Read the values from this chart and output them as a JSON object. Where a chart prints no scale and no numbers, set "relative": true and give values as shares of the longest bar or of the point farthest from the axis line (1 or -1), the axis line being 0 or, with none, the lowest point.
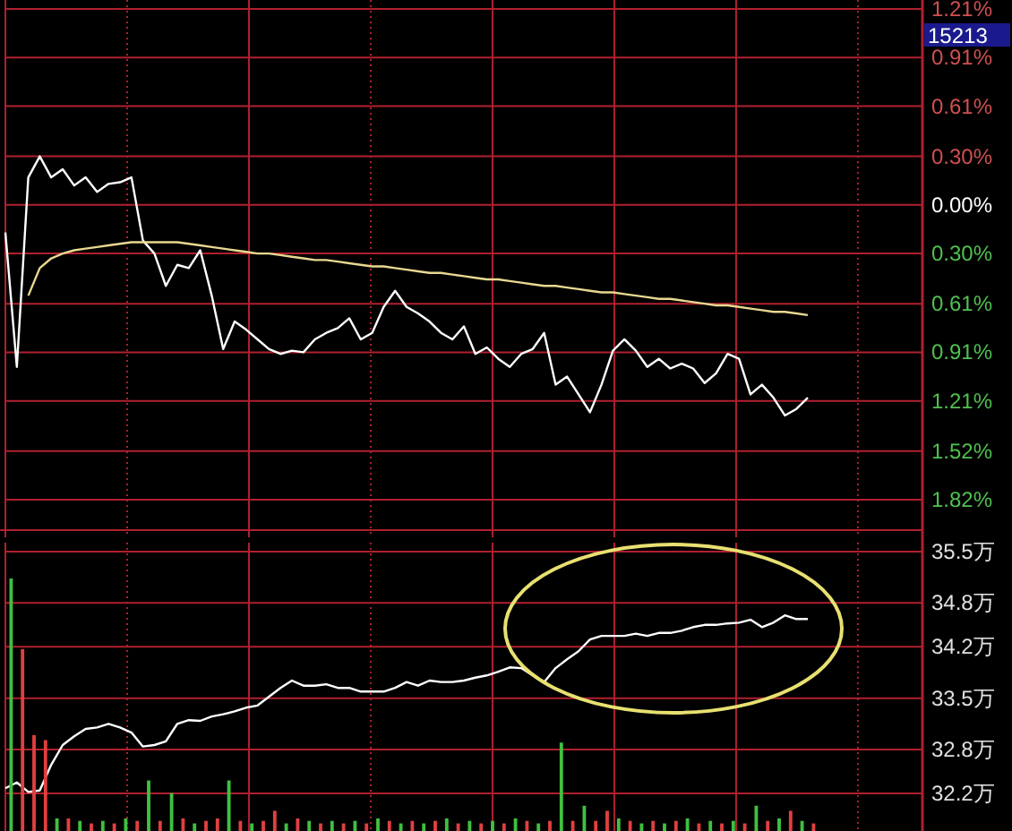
{
  "chart_data": [
    {
      "type": "line",
      "categories": [
        null,
        null,
        null,
        null,
        null,
        null,
        null,
        null,
        null,
        null,
        null,
        null,
        null,
        null,
        null,
        null,
        null,
        null,
        null,
        null,
        null,
        null,
        null,
        null,
        null,
        null,
        null,
        null,
        null,
        null,
        null,
        null,
        null,
        null,
        null,
        null,
        null,
        null,
        null,
        null,
        null,
        null,
        null,
        null,
        null,
        null,
        null,
        null,
        null,
        null,
        null,
        null,
        null,
        null,
        null,
        null,
        null,
        null,
        null,
        null,
        null,
        null,
        null,
        null,
        null,
        null,
        null,
        null,
        null,
        null,
        null
      ],
      "series": [
        {
          "color": "#ffffff",
          "values": [
            -0.17,
            -1.0,
            0.17,
            0.3,
            0.17,
            0.22,
            0.12,
            0.17,
            0.08,
            0.13,
            0.14,
            0.17,
            -0.22,
            -0.3,
            -0.5,
            -0.37,
            -0.39,
            -0.28,
            -0.56,
            -0.89,
            -0.72,
            -0.77,
            -0.83,
            -0.89,
            -0.92,
            -0.9,
            -0.91,
            -0.83,
            -0.79,
            -0.76,
            -0.7,
            -0.83,
            -0.79,
            -0.63,
            -0.53,
            -0.63,
            -0.67,
            -0.72,
            -0.79,
            -0.83,
            -0.75,
            -0.92,
            -0.88,
            -0.95,
            -1.0,
            -0.92,
            -0.89,
            -0.79,
            -1.11,
            -1.06,
            -1.17,
            -1.28,
            -1.11,
            -0.9,
            -0.83,
            -0.9,
            -1.0,
            -0.95,
            -1.01,
            -0.98,
            -1.01,
            -1.1,
            -1.04,
            -0.92,
            -0.95,
            -1.17,
            -1.11,
            -1.19,
            -1.3,
            -1.26,
            -1.19
          ]
        },
        {
          "color": "#e8d890",
          "values": [
            null,
            null,
            -0.56,
            -0.39,
            -0.33,
            -0.3,
            -0.28,
            -0.27,
            -0.26,
            -0.25,
            -0.24,
            -0.23,
            -0.23,
            -0.23,
            -0.23,
            -0.23,
            -0.24,
            -0.25,
            -0.26,
            -0.27,
            -0.28,
            -0.29,
            -0.3,
            -0.3,
            -0.31,
            -0.32,
            -0.33,
            -0.34,
            -0.34,
            -0.35,
            -0.36,
            -0.37,
            -0.38,
            -0.38,
            -0.39,
            -0.4,
            -0.41,
            -0.42,
            -0.42,
            -0.43,
            -0.44,
            -0.45,
            -0.46,
            -0.46,
            -0.47,
            -0.48,
            -0.49,
            -0.5,
            -0.5,
            -0.51,
            -0.52,
            -0.53,
            -0.54,
            -0.54,
            -0.55,
            -0.56,
            -0.57,
            -0.58,
            -0.58,
            -0.59,
            -0.6,
            -0.61,
            -0.62,
            -0.62,
            -0.63,
            -0.64,
            -0.65,
            -0.66,
            -0.66,
            -0.67,
            -0.68
          ]
        }
      ],
      "ylim": [
        -1.82,
        1.21
      ],
      "yticks": [
        {
          "value": 1.21,
          "label": "1.21%"
        },
        {
          "value": 0.91,
          "label": "0.91%"
        },
        {
          "value": 0.61,
          "label": "0.61%"
        },
        {
          "value": 0.3,
          "label": "0.30%"
        },
        {
          "value": 0.0,
          "label": "0.00%"
        },
        {
          "value": -0.3,
          "label": "0.30%"
        },
        {
          "value": -0.61,
          "label": "0.61%"
        },
        {
          "value": -0.91,
          "label": "0.91%"
        },
        {
          "value": -1.21,
          "label": "1.21%"
        },
        {
          "value": -1.52,
          "label": "1.52%"
        },
        {
          "value": -1.82,
          "label": "1.82%"
        }
      ],
      "grid": true,
      "tick_labels": "y",
      "annotations": [
        "15213"
      ]
    },
    {
      "type": "line",
      "categories": [
        null,
        null,
        null,
        null,
        null,
        null,
        null,
        null,
        null,
        null,
        null,
        null,
        null,
        null,
        null,
        null,
        null,
        null,
        null,
        null,
        null,
        null,
        null,
        null,
        null,
        null,
        null,
        null,
        null,
        null,
        null,
        null,
        null,
        null,
        null,
        null,
        null,
        null,
        null,
        null,
        null,
        null,
        null,
        null,
        null,
        null,
        null,
        null,
        null,
        null,
        null,
        null,
        null,
        null,
        null,
        null,
        null,
        null,
        null,
        null,
        null,
        null,
        null,
        null,
        null,
        null,
        null,
        null,
        null,
        null,
        null
      ],
      "series": [
        {
          "color": "#ffffff",
          "values": [
            32.27,
            32.35,
            32.22,
            32.24,
            32.59,
            32.86,
            32.98,
            33.08,
            33.1,
            33.15,
            33.1,
            33.03,
            32.84,
            32.86,
            32.91,
            33.15,
            33.2,
            33.19,
            33.25,
            33.28,
            33.32,
            33.37,
            33.4,
            33.52,
            33.64,
            33.74,
            33.67,
            33.67,
            33.69,
            33.64,
            33.64,
            33.59,
            33.59,
            33.59,
            33.64,
            33.72,
            33.67,
            33.74,
            33.72,
            33.72,
            33.74,
            33.78,
            33.81,
            33.86,
            33.92,
            33.91,
            33.81,
            33.72,
            33.91,
            34.03,
            34.14,
            34.3,
            34.35,
            34.35,
            34.35,
            34.38,
            34.35,
            34.39,
            34.39,
            34.42,
            34.47,
            34.5,
            34.5,
            34.52,
            34.53,
            34.57,
            34.47,
            34.53,
            34.63,
            34.58,
            34.58
          ]
        }
      ],
      "ylim": [
        32.2,
        35.5
      ],
      "yticks": [
        {
          "value": 35.5,
          "label": "35.5万"
        },
        {
          "value": 34.8,
          "label": "34.8万"
        },
        {
          "value": 34.2,
          "label": "34.2万"
        },
        {
          "value": 33.5,
          "label": "33.5万"
        },
        {
          "value": 32.8,
          "label": "32.8万"
        },
        {
          "value": 32.2,
          "label": "32.2万"
        }
      ],
      "grid": true,
      "tick_labels": "y"
    },
    {
      "type": "bar",
      "relative": true,
      "categories": [
        null,
        null,
        null,
        null,
        null,
        null,
        null,
        null,
        null,
        null,
        null,
        null,
        null,
        null,
        null,
        null,
        null,
        null,
        null,
        null,
        null,
        null,
        null,
        null,
        null,
        null,
        null,
        null,
        null,
        null,
        null,
        null,
        null,
        null,
        null,
        null,
        null,
        null,
        null,
        null,
        null,
        null,
        null,
        null,
        null,
        null,
        null,
        null,
        null,
        null,
        null,
        null,
        null,
        null,
        null,
        null,
        null,
        null,
        null,
        null,
        null,
        null,
        null,
        null,
        null,
        null,
        null,
        null,
        null,
        null,
        null
      ],
      "values": [
        1.0,
        0.72,
        0.38,
        0.36,
        0.05,
        0.05,
        0.04,
        0.03,
        0.04,
        0.03,
        0.05,
        0.04,
        0.2,
        0.04,
        0.15,
        0.05,
        0.03,
        0.04,
        0.05,
        0.2,
        0.04,
        0.03,
        0.04,
        0.08,
        0.03,
        0.05,
        0.04,
        0.03,
        0.04,
        0.03,
        0.04,
        0.03,
        0.05,
        0.04,
        0.03,
        0.04,
        0.03,
        0.04,
        0.05,
        0.03,
        0.04,
        0.03,
        0.04,
        0.03,
        0.05,
        0.04,
        0.03,
        0.04,
        0.35,
        0.04,
        0.1,
        0.04,
        0.08,
        0.05,
        0.04,
        0.03,
        0.04,
        0.03,
        0.04,
        0.05,
        0.03,
        0.04,
        0.03,
        0.04,
        0.03,
        0.1,
        0.04,
        0.05,
        0.08,
        0.04,
        0.03
      ],
      "colors": [
        "#40c040",
        "#e04040",
        "#e04040",
        "#e04040",
        "#40c040",
        "#e04040",
        "#40c040",
        "#e04040",
        "#40c040",
        "#e04040",
        "#40c040",
        "#e04040",
        "#40c040",
        "#e04040",
        "#40c040",
        "#e04040",
        "#40c040",
        "#e04040",
        "#e04040",
        "#40c040",
        "#e04040",
        "#40c040",
        "#e04040",
        "#e04040",
        "#40c040",
        "#e04040",
        "#40c040",
        "#e04040",
        "#40c040",
        "#e04040",
        "#40c040",
        "#e04040",
        "#40c040",
        "#e04040",
        "#40c040",
        "#e04040",
        "#40c040",
        "#e04040",
        "#40c040",
        "#e04040",
        "#40c040",
        "#e04040",
        "#40c040",
        "#e04040",
        "#40c040",
        "#e04040",
        "#40c040",
        "#e04040",
        "#40c040",
        "#e04040",
        "#40c040",
        "#e04040",
        "#e04040",
        "#40c040",
        "#e04040",
        "#40c040",
        "#e04040",
        "#40c040",
        "#e04040",
        "#40c040",
        "#e04040",
        "#40c040",
        "#e04040",
        "#40c040",
        "#e04040",
        "#40c040",
        "#e04040",
        "#40c040",
        "#e04040",
        "#40c040",
        "#e04040"
      ]
    }
  ]
}
